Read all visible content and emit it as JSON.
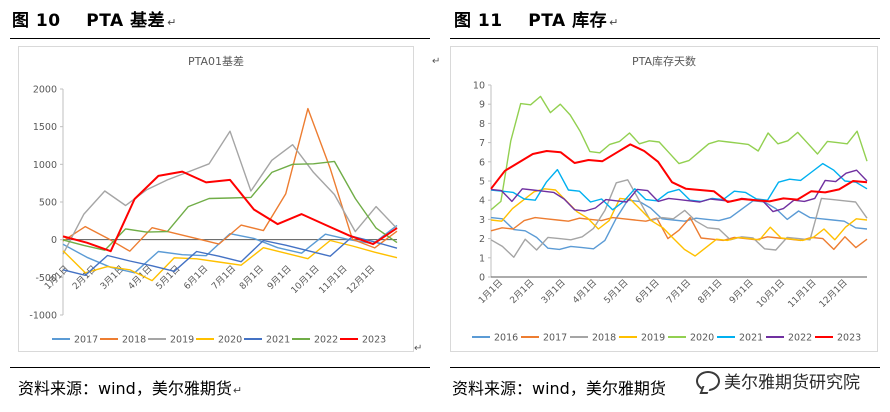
{
  "left_figure": {
    "number": "图 10",
    "title": "PTA 基差",
    "para_mark": "↵"
  },
  "right_figure": {
    "number": "图 11",
    "title": "PTA 库存",
    "para_mark": "↵"
  },
  "left_source": "资料来源：wind，美尔雅期货",
  "right_source": "资料来源：wind，美尔雅期货",
  "watermark": "美尔雅期货研究院",
  "marks": {
    "para": "↵"
  },
  "chart_data": [
    {
      "type": "line",
      "title": "PTA01基差",
      "xlabel": "",
      "ylabel": "",
      "ylim": [
        -1000,
        2000
      ],
      "yticks": [
        -1000,
        -500,
        0,
        500,
        1000,
        1500,
        2000
      ],
      "ytick_labels": [
        "-1000",
        "-500",
        "0",
        "500",
        "1000",
        "1500",
        "2000"
      ],
      "xtick_labels": [
        "1月1日",
        "2月1日",
        "3月1日",
        "4月1日",
        "5月1日",
        "6月1日",
        "7月1日",
        "8月1日",
        "9月1日",
        "10月1日",
        "11月1日",
        "12月1日"
      ],
      "grid": false,
      "legend": "bottom",
      "series": [
        {
          "name": "2017",
          "color": "#5b9bd5",
          "values": [
            -200,
            -280,
            -320,
            -300,
            -250,
            -200,
            -120,
            -60,
            -30,
            -60,
            -40,
            -20,
            0,
            40,
            50
          ]
        },
        {
          "name": "2018",
          "color": "#ed7d31",
          "values": [
            120,
            80,
            20,
            -60,
            20,
            40,
            60,
            80,
            100,
            120,
            700,
            1600,
            900,
            50,
            30,
            20
          ]
        },
        {
          "name": "2019",
          "color": "#a5a5a5",
          "values": [
            -100,
            200,
            600,
            500,
            800,
            700,
            900,
            1100,
            1300,
            600,
            1100,
            1400,
            800,
            600,
            200,
            300,
            100
          ]
        },
        {
          "name": "2020",
          "color": "#ffc000",
          "values": [
            -100,
            -300,
            -450,
            -400,
            -450,
            -380,
            -300,
            -250,
            -200,
            -200,
            -180,
            -160,
            -150,
            -130,
            -120,
            -100
          ]
        },
        {
          "name": "2021",
          "color": "#4472c4",
          "values": [
            -400,
            -380,
            -350,
            -330,
            -300,
            -280,
            -250,
            -220,
            -200,
            -150,
            -120,
            -100,
            -80,
            -50,
            -30,
            -20
          ]
        },
        {
          "name": "2022",
          "color": "#70ad47",
          "values": [
            -50,
            -30,
            0,
            50,
            100,
            200,
            300,
            500,
            600,
            700,
            800,
            1000,
            1100,
            900,
            500,
            200,
            100
          ]
        },
        {
          "name": "2023",
          "color": "#ff0000",
          "values": [
            -50,
            -40,
            -60,
            400,
            800,
            950,
            900,
            700,
            400,
            300,
            200,
            150,
            100,
            80,
            60
          ]
        }
      ]
    },
    {
      "type": "line",
      "title": "PTA库存天数",
      "xlabel": "",
      "ylabel": "",
      "ylim": [
        0,
        10
      ],
      "yticks": [
        0,
        1,
        2,
        3,
        4,
        5,
        6,
        7,
        8,
        9,
        10
      ],
      "ytick_labels": [
        "0",
        "1",
        "2",
        "3",
        "4",
        "5",
        "6",
        "7",
        "8",
        "9",
        "10"
      ],
      "xtick_labels": [
        "1月1日",
        "2月1日",
        "3月1日",
        "4月1日",
        "5月1日",
        "6月1日",
        "7月1日",
        "8月1日",
        "9月1日",
        "10月1日",
        "11月1日",
        "12月1日"
      ],
      "grid": false,
      "legend": "bottom",
      "series": [
        {
          "name": "2016",
          "color": "#5b9bd5",
          "values": [
            3,
            3,
            2.5,
            2.5,
            2,
            1.5,
            1.5,
            1.5,
            1.5,
            1.5,
            2,
            3,
            4,
            4,
            3.5,
            3,
            3,
            3,
            3,
            3,
            3,
            3,
            3.5,
            4,
            4,
            3.5,
            3,
            3.5,
            3,
            3,
            3,
            3,
            2.5,
            2.5
          ]
        },
        {
          "name": "2017",
          "color": "#ed7d31",
          "values": [
            2.5,
            2.5,
            2.5,
            3,
            3,
            3,
            3,
            3,
            3,
            3,
            3,
            3,
            3,
            3,
            3,
            3,
            2,
            2.5,
            3,
            2,
            2,
            2,
            2,
            2,
            2,
            2,
            2,
            2,
            2,
            2,
            2,
            1.5,
            2,
            1.5,
            2
          ]
        },
        {
          "name": "2018",
          "color": "#a5a5a5",
          "values": [
            2,
            1.5,
            1,
            2,
            1.5,
            2,
            2,
            2,
            2,
            2.5,
            3.5,
            5,
            5,
            4,
            3,
            3,
            3,
            3.5,
            3,
            2.5,
            2.5,
            2,
            2,
            2,
            1.5,
            1.5,
            2,
            2,
            2,
            4,
            4,
            4,
            4,
            3
          ]
        },
        {
          "name": "2019",
          "color": "#ffc000",
          "values": [
            3,
            3,
            3.5,
            4,
            4.5,
            4.5,
            4.5,
            4,
            3.5,
            3,
            2.5,
            3,
            4,
            4,
            3.5,
            3,
            2.5,
            2,
            1.5,
            1,
            1.5,
            2,
            2,
            2,
            2,
            2,
            2.5,
            2,
            2,
            2,
            2,
            2.5,
            2,
            2.5,
            3,
            3
          ]
        },
        {
          "name": "2020",
          "color": "#92d050",
          "values": [
            3.5,
            4,
            7,
            9,
            9,
            9.5,
            8.5,
            9,
            8.5,
            7.5,
            6.5,
            6.5,
            7,
            7,
            7.5,
            7,
            7,
            7,
            6.5,
            6,
            6,
            6.5,
            7,
            7,
            7,
            7,
            7,
            6.5,
            7.5,
            7,
            7,
            7.5,
            7,
            6.5,
            7,
            7,
            7,
            7.5,
            6
          ]
        },
        {
          "name": "2021",
          "color": "#00b0f0",
          "values": [
            4.5,
            4.5,
            4.5,
            4,
            4,
            5,
            5.5,
            4.5,
            4.5,
            4,
            4,
            3.5,
            4,
            4.5,
            4,
            4,
            4.5,
            4.5,
            4,
            4,
            4,
            4,
            4.5,
            4.5,
            4,
            4,
            5,
            5,
            5,
            5.5,
            6,
            5.5,
            5,
            5,
            4.5
          ]
        },
        {
          "name": "2022",
          "color": "#7030a0",
          "values": [
            4.5,
            4.5,
            4,
            4.5,
            4.5,
            4.5,
            4.5,
            4,
            3.5,
            3.5,
            3.5,
            4,
            4,
            4,
            4.5,
            4.5,
            4,
            4,
            4,
            4,
            4,
            4,
            4,
            4,
            4,
            4,
            4,
            3.5,
            3.5,
            4,
            4,
            4,
            5,
            5,
            5.5,
            5.5,
            5
          ]
        },
        {
          "name": "2023",
          "color": "#ff0000",
          "values": [
            4.5,
            5.5,
            6,
            6.5,
            6.5,
            6.5,
            6,
            6,
            6,
            6.5,
            7,
            6.5,
            6,
            5,
            4.5,
            4.5,
            4.5,
            4,
            4,
            4,
            4,
            4,
            4,
            4.5,
            4.5,
            4.5,
            5,
            5
          ]
        }
      ]
    }
  ]
}
